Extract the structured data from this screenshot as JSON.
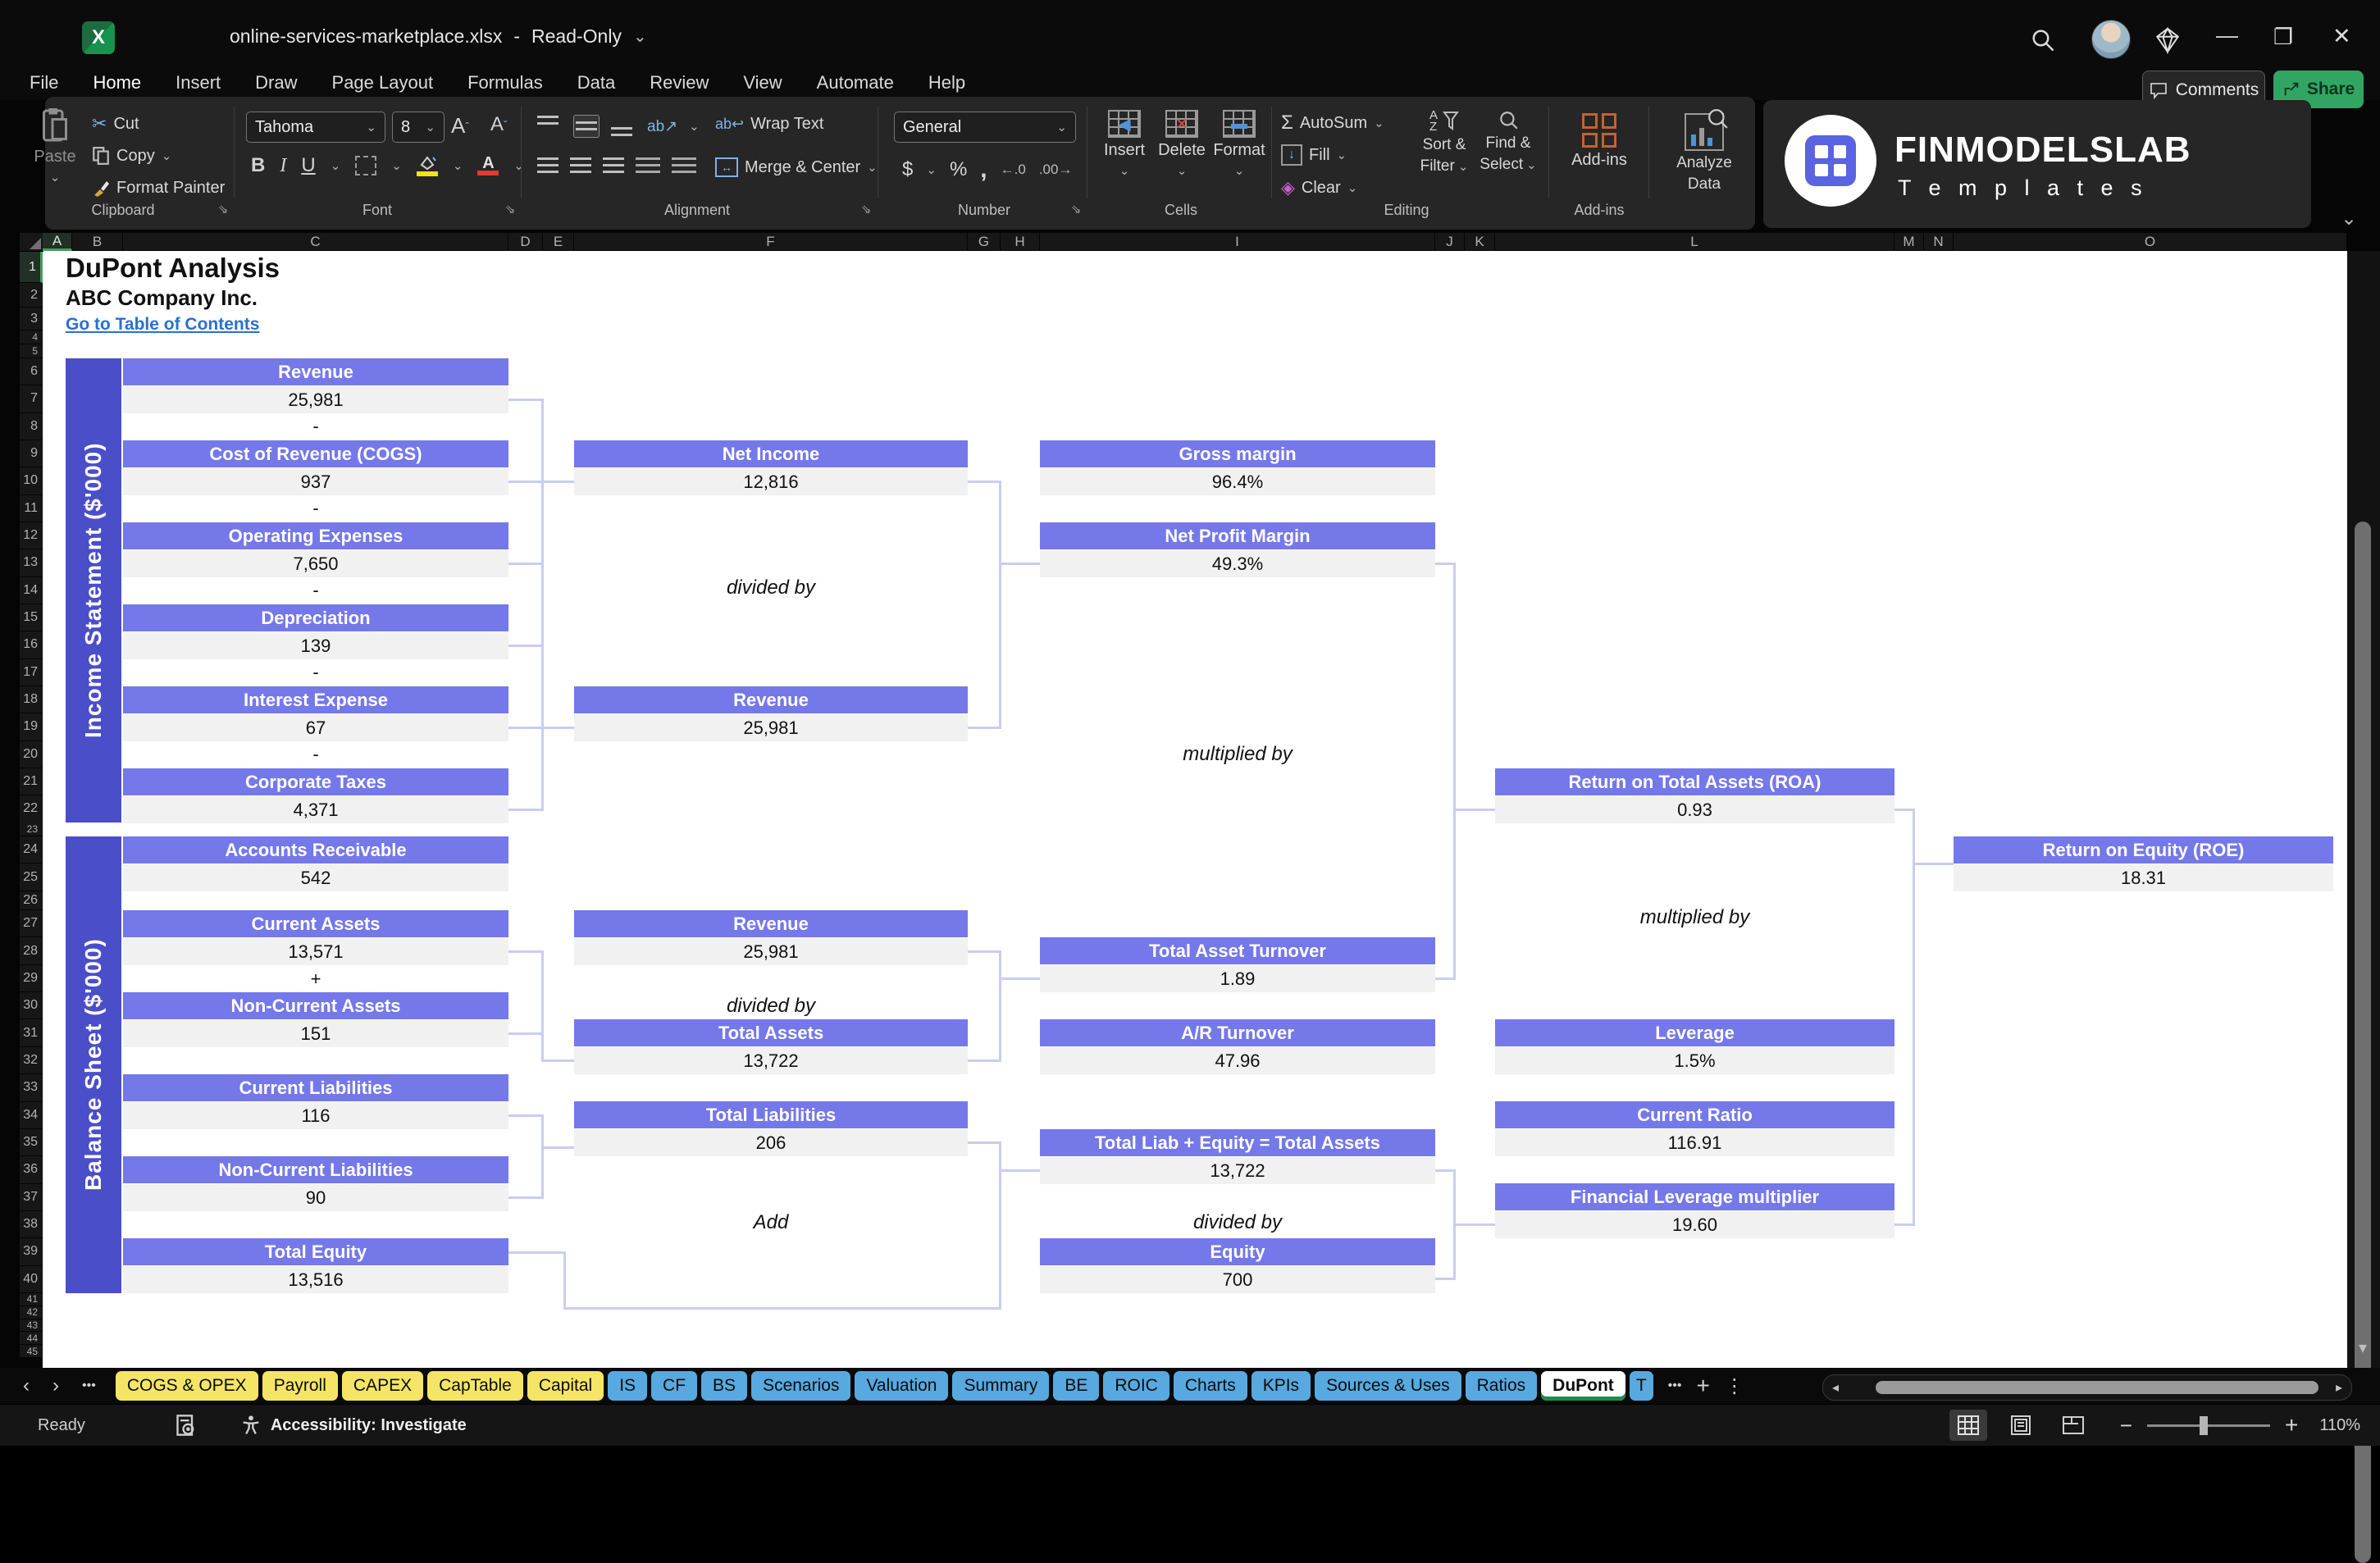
{
  "colors": {
    "header_bar": "#7578e8",
    "sidebar": "#4a4ec9",
    "value_bg": "#f1f1f1",
    "connector": "#c9cdf2",
    "tab_yellow": "#f4e567",
    "tab_blue": "#57a9e0",
    "share_green": "#31a663",
    "link_blue": "#2a6fd2",
    "accent_green": "#52b878"
  },
  "icons": {
    "chevron_down": "⌄",
    "minimize": "—",
    "restore": "❐",
    "close": "✕",
    "separator": "-",
    "nav_left": "‹",
    "nav_right": "›",
    "more": "•••",
    "plus": "+",
    "kebab": "⋮",
    "scroll_left": "◂",
    "scroll_right": "▸",
    "scroll_down": "▾",
    "launcher": "⇘",
    "cut": "✂",
    "sigma": "Σ",
    "fill_arrow": "↓",
    "clear_diamond": "◈",
    "bold": "B",
    "italic": "I",
    "underline": "U",
    "dollar": "$",
    "percent": "%",
    "comma": ",",
    "dec_left": "←.0",
    "dec_right": ".00→",
    "orient": "ab↗",
    "wrap": "ab↩",
    "merge_arrows": "↔",
    "sort_az": "AZ",
    "sort_funnel": "▼",
    "insert_mark": "◀",
    "delete_mark": "✕",
    "format_mark": "▬"
  },
  "window": {
    "title": "online-services-marketplace.xlsx",
    "mode": "Read-Only"
  },
  "menu": {
    "items": [
      "File",
      "Home",
      "Insert",
      "Draw",
      "Page Layout",
      "Formulas",
      "Data",
      "Review",
      "View",
      "Automate",
      "Help"
    ],
    "active": "Home",
    "comments": "Comments",
    "share": "Share"
  },
  "ribbon": {
    "clipboard": {
      "label": "Clipboard",
      "paste": "Paste",
      "cut": "Cut",
      "copy": "Copy",
      "format_painter": "Format Painter"
    },
    "font": {
      "label": "Font",
      "family": "Tahoma",
      "size": "8"
    },
    "alignment": {
      "label": "Alignment",
      "wrap": "Wrap Text",
      "merge": "Merge & Center"
    },
    "number": {
      "label": "Number",
      "format": "General"
    },
    "cells": {
      "label": "Cells",
      "insert": "Insert",
      "delete": "Delete",
      "format": "Format"
    },
    "editing": {
      "label": "Editing",
      "autosum": "AutoSum",
      "fill": "Fill",
      "clear": "Clear",
      "sort1": "Sort &",
      "sort2": "Filter",
      "find1": "Find &",
      "find2": "Select"
    },
    "addins": {
      "label": "Add-ins",
      "button": "Add-ins",
      "analyze1": "Analyze",
      "analyze2": "Data"
    }
  },
  "brand": {
    "name": "FINMODELSLAB",
    "sub": "T e m p l a t e s"
  },
  "sheet": {
    "title": "DuPont Analysis",
    "company": "ABC Company Inc.",
    "link": "Go to Table of Contents",
    "col_letters": [
      "A",
      "B",
      "C",
      "D",
      "E",
      "F",
      "G",
      "H",
      "I",
      "J",
      "K",
      "L",
      "M",
      "N",
      "O"
    ],
    "row_numbers": [
      1,
      2,
      3,
      4,
      5,
      6,
      7,
      8,
      9,
      10,
      11,
      12,
      13,
      14,
      15,
      16,
      17,
      18,
      19,
      20,
      21,
      22,
      23,
      24,
      25,
      26,
      27,
      28,
      29,
      30,
      31,
      32,
      33,
      34,
      35,
      36,
      37,
      38,
      39,
      40,
      41,
      42,
      43,
      44,
      45
    ]
  },
  "diagram": {
    "sections": {
      "income": "Income Statement ($'000)",
      "balance": "Balance Sheet ($'000)"
    },
    "operators": {
      "minus": "-",
      "plus": "+",
      "divided": "divided by",
      "multiplied": "multiplied by",
      "add": "Add"
    },
    "boxes": {
      "rev_is": {
        "label": "Revenue",
        "value": "25,981"
      },
      "cogs": {
        "label": "Cost of Revenue (COGS)",
        "value": "937"
      },
      "opex": {
        "label": "Operating Expenses",
        "value": "7,650"
      },
      "depr": {
        "label": "Depreciation",
        "value": "139"
      },
      "intexp": {
        "label": "Interest Expense",
        "value": "67"
      },
      "tax": {
        "label": "Corporate Taxes",
        "value": "4,371"
      },
      "ar": {
        "label": "Accounts Receivable",
        "value": "542"
      },
      "ca": {
        "label": "Current Assets",
        "value": "13,571"
      },
      "nca": {
        "label": "Non-Current Assets",
        "value": "151"
      },
      "cl": {
        "label": "Current Liabilities",
        "value": "116"
      },
      "ncl": {
        "label": "Non-Current Liabilities",
        "value": "90"
      },
      "te": {
        "label": "Total Equity",
        "value": "13,516"
      },
      "ni": {
        "label": "Net Income",
        "value": "12,816"
      },
      "rev_top": {
        "label": "Revenue",
        "value": "25,981"
      },
      "rev_mid": {
        "label": "Revenue",
        "value": "25,981"
      },
      "tassets": {
        "label": "Total Assets",
        "value": "13,722"
      },
      "tliab": {
        "label": "Total Liabilities",
        "value": "206"
      },
      "gm": {
        "label": "Gross margin",
        "value": "96.4%"
      },
      "npm": {
        "label": "Net Profit Margin",
        "value": "49.3%"
      },
      "tat": {
        "label": "Total Asset Turnover",
        "value": "1.89"
      },
      "art": {
        "label": "A/R Turnover",
        "value": "47.96"
      },
      "tle": {
        "label": "Total Liab + Equity = Total Assets",
        "value": "13,722"
      },
      "eq": {
        "label": "Equity",
        "value": "700"
      },
      "roa": {
        "label": "Return on Total Assets (ROA)",
        "value": "0.93"
      },
      "lev": {
        "label": "Leverage",
        "value": "1.5%"
      },
      "cr": {
        "label": "Current Ratio",
        "value": "116.91"
      },
      "flm": {
        "label": "Financial Leverage multiplier",
        "value": "19.60"
      },
      "roe": {
        "label": "Return on Equity (ROE)",
        "value": "18.31"
      }
    }
  },
  "tabs": {
    "items": [
      {
        "label": "COGS & OPEX",
        "c": "y"
      },
      {
        "label": "Payroll",
        "c": "y"
      },
      {
        "label": "CAPEX",
        "c": "y"
      },
      {
        "label": "CapTable",
        "c": "y"
      },
      {
        "label": "Capital",
        "c": "y"
      },
      {
        "label": "IS",
        "c": "b"
      },
      {
        "label": "CF",
        "c": "b"
      },
      {
        "label": "BS",
        "c": "b"
      },
      {
        "label": "Scenarios",
        "c": "b"
      },
      {
        "label": "Valuation",
        "c": "b"
      },
      {
        "label": "Summary",
        "c": "b"
      },
      {
        "label": "BE",
        "c": "b"
      },
      {
        "label": "ROIC",
        "c": "b"
      },
      {
        "label": "Charts",
        "c": "b"
      },
      {
        "label": "KPIs",
        "c": "b"
      },
      {
        "label": "Sources & Uses",
        "c": "b"
      },
      {
        "label": "Ratios",
        "c": "b"
      },
      {
        "label": "DuPont",
        "c": "active"
      },
      {
        "label": "T",
        "c": "b cut"
      }
    ]
  },
  "status": {
    "ready": "Ready",
    "accessibility": "Accessibility: Investigate",
    "zoom": "110%"
  }
}
